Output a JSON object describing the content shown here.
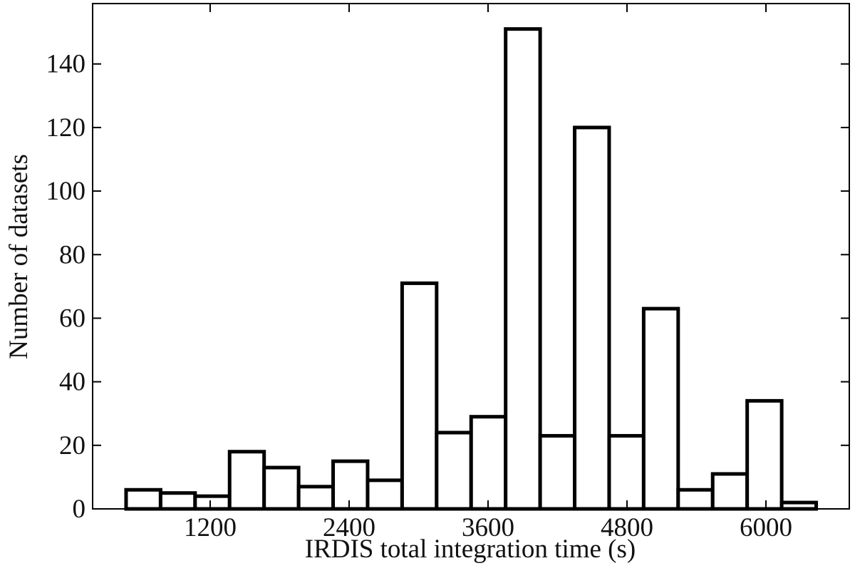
{
  "chart_data": {
    "type": "histogram",
    "xlabel": "IRDIS total integration time (s)",
    "ylabel": "Number of datasets",
    "bins": [
      474,
      772,
      1070,
      1368,
      1666,
      1964,
      2262,
      2560,
      2858,
      3156,
      3454,
      3752,
      4050,
      4348,
      4646,
      4944,
      5242,
      5540,
      5838,
      6136,
      6434
    ],
    "values": [
      6,
      5,
      4,
      18,
      13,
      7,
      15,
      9,
      71,
      24,
      29,
      151,
      23,
      120,
      23,
      63,
      6,
      11,
      34,
      2
    ],
    "color": "#ffffff",
    "edgecolor": "#000000",
    "xlim": [
      185,
      6720
    ],
    "xticks": [
      1200,
      2400,
      3600,
      4800,
      6000
    ],
    "ylim": [
      0,
      159
    ],
    "yticks": [
      0,
      20,
      40,
      60,
      80,
      100,
      120,
      140
    ]
  }
}
